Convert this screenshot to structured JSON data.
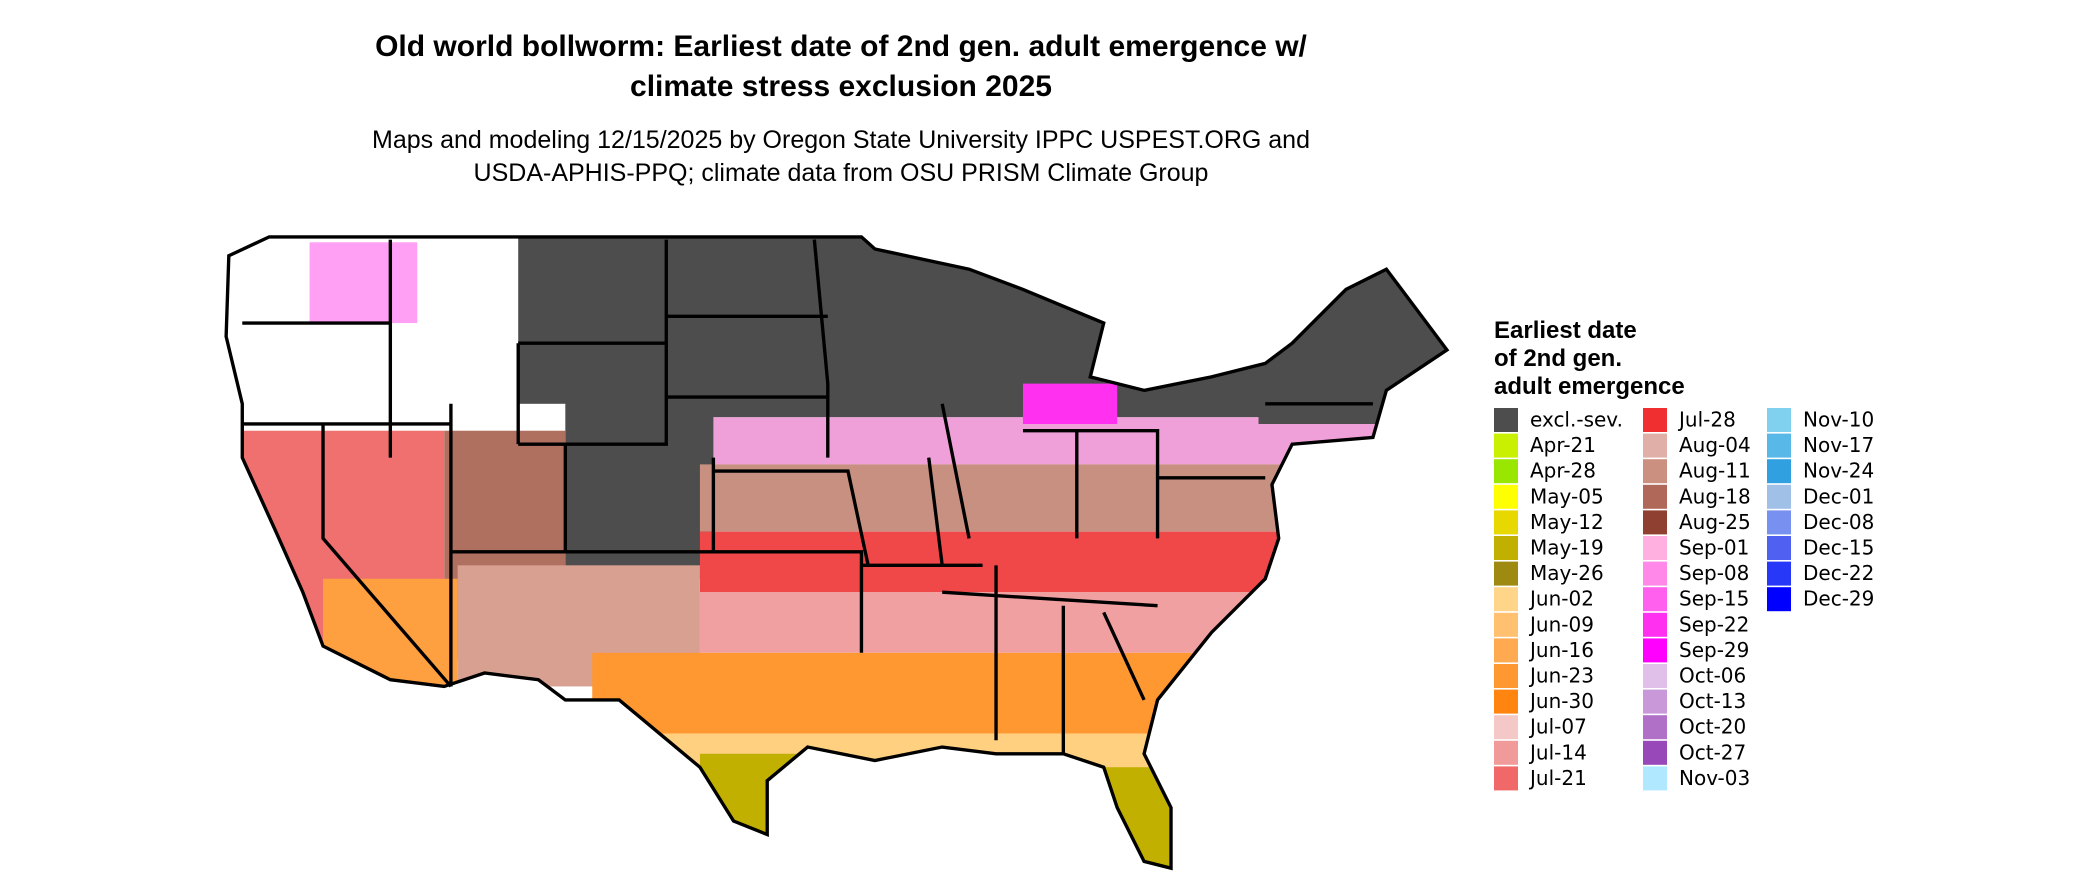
{
  "header": {
    "title_lines": [
      "Old world bollworm: Earliest date of 2nd gen. adult emergence w/",
      "climate stress exclusion 2025"
    ],
    "subtitle_lines": [
      "Maps and modeling 12/15/2025 by Oregon State University IPPC USPEST.ORG and",
      "USDA-APHIS-PPQ; climate data from OSU PRISM Climate Group"
    ]
  },
  "legend": {
    "title_lines": [
      "Earliest date",
      "of 2nd gen.",
      "adult emergence"
    ],
    "items": [
      {
        "label": "excl.-sev.",
        "color": "#4d4d4d"
      },
      {
        "label": "Apr-21",
        "color": "#c8f000"
      },
      {
        "label": "Apr-28",
        "color": "#99e600"
      },
      {
        "label": "May-05",
        "color": "#ffff00"
      },
      {
        "label": "May-12",
        "color": "#e6d800"
      },
      {
        "label": "May-19",
        "color": "#c2b000"
      },
      {
        "label": "May-26",
        "color": "#9e8a10"
      },
      {
        "label": "Jun-02",
        "color": "#ffd58a"
      },
      {
        "label": "Jun-09",
        "color": "#ffc070"
      },
      {
        "label": "Jun-16",
        "color": "#ffaa50"
      },
      {
        "label": "Jun-23",
        "color": "#ff9830"
      },
      {
        "label": "Jun-30",
        "color": "#ff8510"
      },
      {
        "label": "Jul-07",
        "color": "#f5c8c8"
      },
      {
        "label": "Jul-14",
        "color": "#f09a9a"
      },
      {
        "label": "Jul-21",
        "color": "#f06868"
      },
      {
        "label": "Jul-28",
        "color": "#f03030"
      },
      {
        "label": "Aug-04",
        "color": "#e0b0a8"
      },
      {
        "label": "Aug-11",
        "color": "#cc9080"
      },
      {
        "label": "Aug-18",
        "color": "#b06858"
      },
      {
        "label": "Aug-25",
        "color": "#904030"
      },
      {
        "label": "Sep-01",
        "color": "#ffb0e0"
      },
      {
        "label": "Sep-08",
        "color": "#ff88e8"
      },
      {
        "label": "Sep-15",
        "color": "#ff60ee"
      },
      {
        "label": "Sep-22",
        "color": "#ff30f0"
      },
      {
        "label": "Sep-29",
        "color": "#ff00ff"
      },
      {
        "label": "Oct-06",
        "color": "#e0c0e8"
      },
      {
        "label": "Oct-13",
        "color": "#c898d8"
      },
      {
        "label": "Oct-20",
        "color": "#b070c8"
      },
      {
        "label": "Oct-27",
        "color": "#9848b8"
      },
      {
        "label": "Nov-03",
        "color": "#b0e8ff"
      },
      {
        "label": "Nov-10",
        "color": "#80d0f0"
      },
      {
        "label": "Nov-17",
        "color": "#58b8e8"
      },
      {
        "label": "Nov-24",
        "color": "#30a0e0"
      },
      {
        "label": "Dec-01",
        "color": "#a0c0e8"
      },
      {
        "label": "Dec-08",
        "color": "#7890f0"
      },
      {
        "label": "Dec-15",
        "color": "#5060f0"
      },
      {
        "label": "Dec-22",
        "color": "#2838f8"
      },
      {
        "label": "Dec-29",
        "color": "#0000ff"
      }
    ]
  }
}
